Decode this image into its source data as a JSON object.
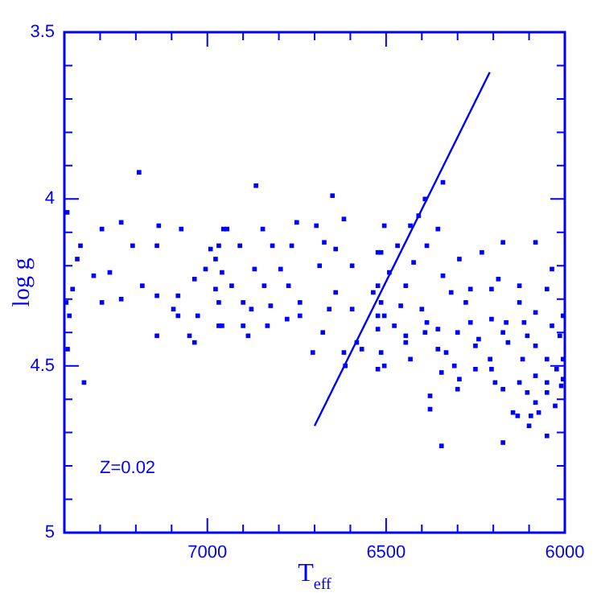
{
  "chart_data": {
    "type": "scatter",
    "xlabel": "T$_{eff}$",
    "ylabel": "log g",
    "annotations": [
      "Z=0.02"
    ],
    "xlim": [
      7400,
      6000
    ],
    "ylim": [
      5,
      3.5
    ],
    "xticks": [
      {
        "value": 7400,
        "label": null
      },
      {
        "value": 7300,
        "label": null
      },
      {
        "value": 7200,
        "label": null
      },
      {
        "value": 7100,
        "label": null
      },
      7000,
      {
        "value": 6900,
        "label": null
      },
      {
        "value": 6800,
        "label": null
      },
      {
        "value": 6700,
        "label": null
      },
      {
        "value": 6600,
        "label": null
      },
      6500,
      {
        "value": 6400,
        "label": null
      },
      {
        "value": 6300,
        "label": null
      },
      {
        "value": 6200,
        "label": null
      },
      {
        "value": 6100,
        "label": null
      },
      6000
    ],
    "yticks": [
      3.5,
      {
        "value": 3.6,
        "label": null
      },
      {
        "value": 3.7,
        "label": null
      },
      {
        "value": 3.8,
        "label": null
      },
      {
        "value": 3.9,
        "label": null
      },
      4,
      {
        "value": 4.1,
        "label": null
      },
      {
        "value": 4.2,
        "label": null
      },
      {
        "value": 4.3,
        "label": null
      },
      {
        "value": 4.4,
        "label": null
      },
      4.5,
      {
        "value": 4.6,
        "label": null
      },
      {
        "value": 4.7,
        "label": null
      },
      {
        "value": 4.8,
        "label": null
      },
      {
        "value": 4.9,
        "label": null
      },
      5
    ],
    "grid": false,
    "legend": false,
    "series": [
      {
        "color": "#0000ff",
        "marker": "square",
        "x": [
          7191,
          7392,
          7295,
          7241,
          7355,
          7364,
          7318,
          7377,
          7395,
          7386,
          7391,
          7345,
          7209,
          7141,
          7136,
          7073,
          7273,
          7182,
          7141,
          7241,
          7295,
          7082,
          7095,
          7082,
          7027,
          7141,
          7050,
          7036,
          6959,
          6991,
          6968,
          7005,
          6955,
          7036,
          6977,
          6864,
          6650,
          6618,
          6945,
          6845,
          6750,
          6695,
          6977,
          6909,
          6818,
          6764,
          6673,
          6641,
          6959,
          6868,
          6795,
          6686,
          6595,
          6932,
          6841,
          6773,
          6641,
          6968,
          6900,
          6823,
          6741,
          6659,
          6595,
          6968,
          6877,
          6900,
          6886,
          6832,
          6777,
          6741,
          6677,
          6705,
          6618,
          6614,
          6582,
          6523,
          6536,
          6505,
          6568,
          6341,
          6391,
          6409,
          6355,
          6432,
          6505,
          6173,
          6082,
          6036,
          6232,
          6295,
          6468,
          6386,
          6514,
          6423,
          6491,
          6341,
          6186,
          6127,
          6050,
          6523,
          6445,
          6264,
          6205,
          6514,
          6459,
          6400,
          6318,
          6277,
          6127,
          6082,
          6005,
          6523,
          6477,
          6386,
          6355,
          6264,
          6205,
          6164,
          6114,
          6036,
          6523,
          6445,
          6391,
          6300,
          6241,
          6173,
          6105,
          6014,
          6445,
          6355,
          6250,
          6159,
          6082,
          6514,
          6432,
          6332,
          6209,
          6118,
          6050,
          6005,
          6523,
          6309,
          6205,
          6082,
          6023,
          6505,
          6345,
          6295,
          6250,
          6195,
          6127,
          6050,
          6005,
          6300,
          6173,
          6105,
          6050,
          6010,
          6377,
          6377,
          6027,
          6082,
          6145,
          6132,
          6095,
          6100,
          6073,
          6050,
          6173,
          6345
        ],
        "values": [
          3.92,
          4.04,
          4.09,
          4.07,
          4.14,
          4.18,
          4.23,
          4.27,
          4.31,
          4.35,
          4.45,
          4.55,
          4.14,
          4.14,
          4.08,
          4.09,
          4.22,
          4.26,
          4.29,
          4.3,
          4.31,
          4.29,
          4.33,
          4.35,
          4.35,
          4.41,
          4.41,
          4.43,
          4.38,
          4.15,
          4.14,
          4.21,
          4.09,
          4.24,
          4.27,
          3.96,
          3.99,
          4.06,
          4.09,
          4.09,
          4.07,
          4.08,
          4.18,
          4.14,
          4.14,
          4.14,
          4.13,
          4.15,
          4.22,
          4.21,
          4.21,
          4.2,
          4.2,
          4.26,
          4.26,
          4.26,
          4.28,
          4.31,
          4.31,
          4.32,
          4.31,
          4.33,
          4.33,
          4.38,
          4.33,
          4.38,
          4.41,
          4.38,
          4.36,
          4.35,
          4.4,
          4.46,
          4.46,
          4.5,
          4.43,
          4.16,
          4.28,
          4.35,
          4.45,
          3.95,
          4.0,
          4.05,
          4.09,
          4.08,
          4.08,
          4.13,
          4.13,
          4.21,
          4.16,
          4.18,
          4.14,
          4.14,
          4.16,
          4.19,
          4.22,
          4.23,
          4.24,
          4.26,
          4.27,
          4.26,
          4.26,
          4.27,
          4.27,
          4.31,
          4.32,
          4.33,
          4.28,
          4.31,
          4.31,
          4.34,
          4.35,
          4.35,
          4.38,
          4.37,
          4.39,
          4.37,
          4.36,
          4.37,
          4.37,
          4.38,
          4.39,
          4.41,
          4.4,
          4.4,
          4.42,
          4.4,
          4.41,
          4.41,
          4.43,
          4.45,
          4.44,
          4.43,
          4.44,
          4.46,
          4.48,
          4.46,
          4.48,
          4.48,
          4.48,
          4.48,
          4.51,
          4.5,
          4.51,
          4.53,
          4.51,
          4.5,
          4.52,
          4.54,
          4.51,
          4.55,
          4.55,
          4.55,
          4.54,
          4.57,
          4.57,
          4.58,
          4.58,
          4.56,
          4.59,
          4.63,
          4.62,
          4.61,
          4.64,
          4.65,
          4.65,
          4.68,
          4.64,
          4.71,
          4.73,
          4.74
        ]
      },
      {
        "type": "line",
        "color": "#0000ff",
        "marker": "none",
        "x": [
          6700,
          6210
        ],
        "values": [
          4.68,
          3.62
        ]
      }
    ]
  }
}
